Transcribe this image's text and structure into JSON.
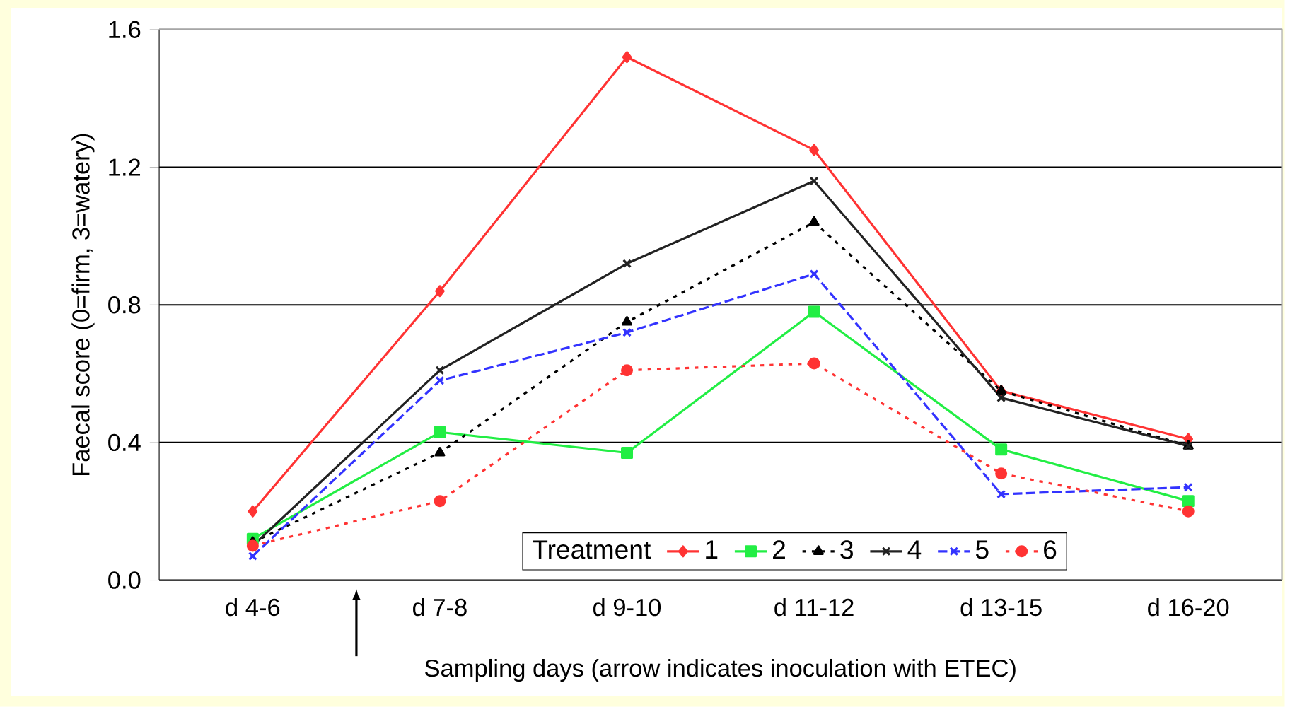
{
  "chart_data": {
    "type": "line",
    "xlabel": "Sampling days (arrow indicates inoculation with ETEC)",
    "ylabel": "Faecal score (0=firm, 3=watery)",
    "legend_title": "Treatment",
    "categories": [
      "d 4-6",
      "d 7-8",
      "d 9-10",
      "d 11-12",
      "d 13-15",
      "d 16-20"
    ],
    "series": [
      {
        "name": "1",
        "color": "#ff3333",
        "marker": "diamond",
        "line_style": "solid",
        "values": [
          0.2,
          0.84,
          1.52,
          1.25,
          0.55,
          0.41
        ]
      },
      {
        "name": "2",
        "color": "#22ee44",
        "marker": "square",
        "line_style": "solid",
        "values": [
          0.12,
          0.43,
          0.37,
          0.78,
          0.38,
          0.23
        ]
      },
      {
        "name": "3",
        "color": "#000000",
        "marker": "triangle",
        "line_style": "dotted",
        "values": [
          0.11,
          0.37,
          0.75,
          1.04,
          0.55,
          0.39
        ]
      },
      {
        "name": "4",
        "color": "#222222",
        "marker": "cross",
        "line_style": "solid",
        "values": [
          0.1,
          0.61,
          0.92,
          1.16,
          0.53,
          0.39
        ]
      },
      {
        "name": "5",
        "color": "#3333ff",
        "marker": "cross",
        "line_style": "dashed",
        "values": [
          0.07,
          0.58,
          0.72,
          0.89,
          0.25,
          0.27
        ]
      },
      {
        "name": "6",
        "color": "#ff3333",
        "marker": "circle",
        "line_style": "dotted",
        "values": [
          0.1,
          0.23,
          0.61,
          0.63,
          0.31,
          0.2
        ]
      }
    ],
    "ylim": [
      0,
      1.6
    ],
    "yticks": [
      {
        "value": 0,
        "label": "0.0"
      },
      0.4,
      0.8,
      1.2,
      1.6
    ],
    "grid": "y",
    "legend": "bottom"
  }
}
